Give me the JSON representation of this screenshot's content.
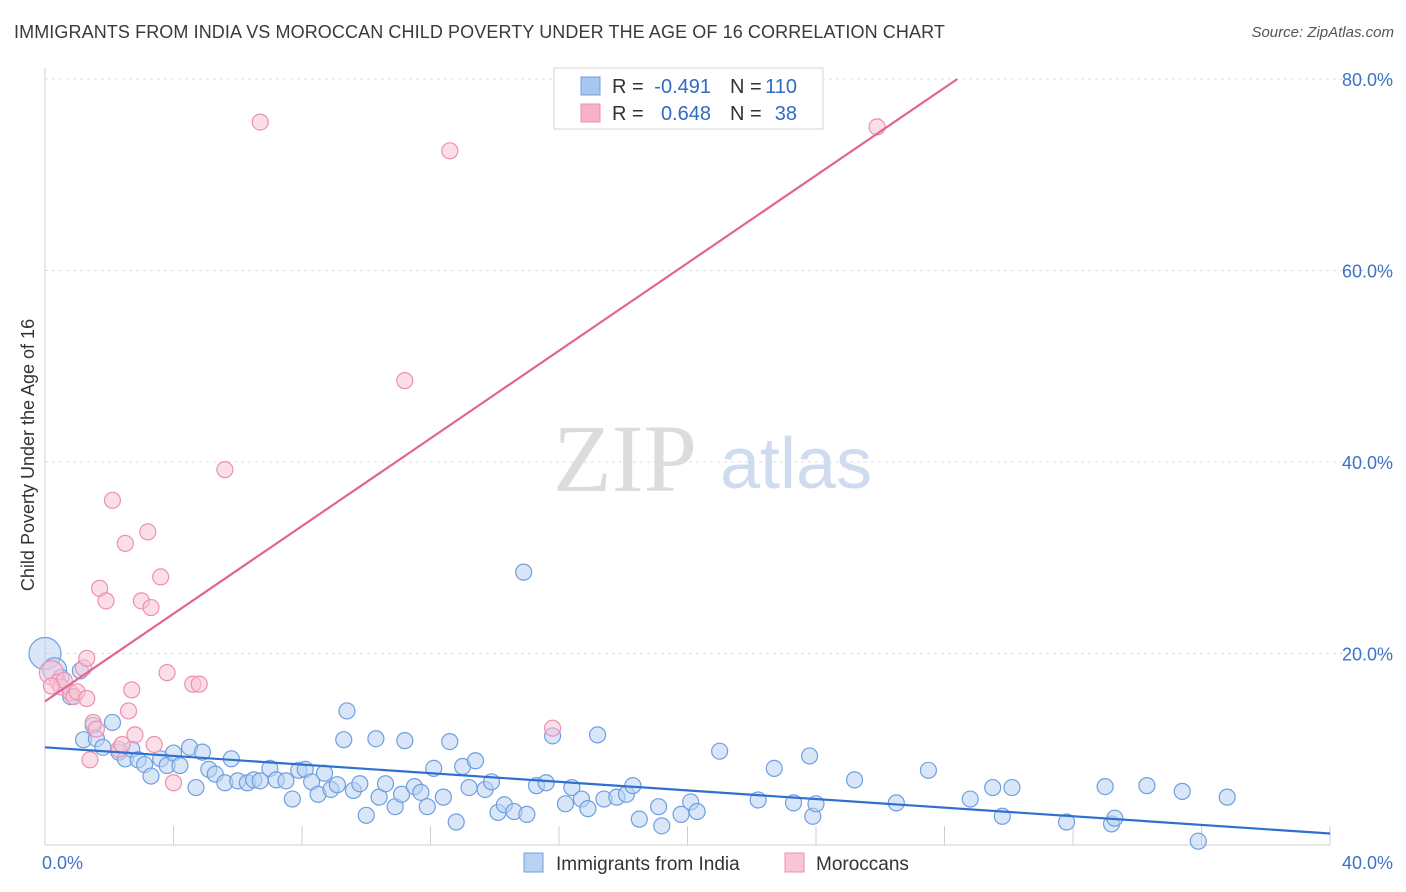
{
  "header": {
    "title": "IMMIGRANTS FROM INDIA VS MOROCCAN CHILD POVERTY UNDER THE AGE OF 16 CORRELATION CHART",
    "source": "Source: ZipAtlas.com"
  },
  "watermark": {
    "zip": "ZIP",
    "atlas": "atlas"
  },
  "stats_legend": {
    "rows": [
      {
        "r_label": "R =",
        "r_value": "-0.491",
        "n_label": "N =",
        "n_value": "110",
        "color": "#a9c6f0"
      },
      {
        "r_label": "R =",
        "r_value": "0.648",
        "n_label": "N =",
        "n_value": "38",
        "color": "#f6b3c8"
      }
    ]
  },
  "chart_data": {
    "type": "scatter",
    "title": "IMMIGRANTS FROM INDIA VS MOROCCAN CHILD POVERTY UNDER THE AGE OF 16 CORRELATION CHART",
    "xlabel": "",
    "ylabel": "Child Poverty Under the Age of 16",
    "xlim": [
      0,
      40
    ],
    "ylim": [
      0,
      80
    ],
    "x_tick_labels": [
      {
        "value": 0,
        "label": "0.0%"
      },
      {
        "value": 40,
        "label": "40.0%"
      }
    ],
    "y_tick_labels": [
      {
        "value": 20,
        "label": "20.0%"
      },
      {
        "value": 40,
        "label": "40.0%"
      },
      {
        "value": 60,
        "label": "60.0%"
      },
      {
        "value": 80,
        "label": "80.0%"
      }
    ],
    "grid": true,
    "legend_position": "bottom",
    "series": [
      {
        "name": "Immigrants from India",
        "color": "#6f9fe0",
        "fill": "#b9d2f3",
        "line_color": "#2f6fcf",
        "trend": [
          [
            0,
            10.2
          ],
          [
            40,
            1.2
          ]
        ],
        "points": [
          [
            0.0,
            20.0,
            2
          ],
          [
            0.3,
            18.3,
            1.5
          ],
          [
            0.5,
            17.5,
            1
          ],
          [
            0.8,
            15.5,
            1
          ],
          [
            1.1,
            18.2,
            1
          ],
          [
            1.2,
            11.0,
            1
          ],
          [
            1.5,
            12.5,
            1
          ],
          [
            1.6,
            11.1,
            1
          ],
          [
            1.8,
            10.2,
            1
          ],
          [
            2.1,
            12.8,
            1
          ],
          [
            2.3,
            9.7,
            1
          ],
          [
            2.5,
            9.0,
            1
          ],
          [
            2.7,
            10.0,
            1
          ],
          [
            2.9,
            8.9,
            1
          ],
          [
            3.1,
            8.4,
            1
          ],
          [
            3.3,
            7.2,
            1
          ],
          [
            3.6,
            9.0,
            1
          ],
          [
            3.8,
            8.3,
            1
          ],
          [
            4.0,
            9.6,
            1
          ],
          [
            4.2,
            8.3,
            1
          ],
          [
            4.5,
            10.2,
            1
          ],
          [
            4.7,
            6.0,
            1
          ],
          [
            4.9,
            9.7,
            1
          ],
          [
            5.1,
            7.9,
            1
          ],
          [
            5.3,
            7.4,
            1
          ],
          [
            5.6,
            6.5,
            1
          ],
          [
            5.8,
            9.0,
            1
          ],
          [
            6.0,
            6.7,
            1
          ],
          [
            6.3,
            6.5,
            1
          ],
          [
            6.5,
            6.8,
            1
          ],
          [
            6.7,
            6.7,
            1
          ],
          [
            7.0,
            8.0,
            1
          ],
          [
            7.2,
            6.8,
            1
          ],
          [
            7.5,
            6.7,
            1
          ],
          [
            7.7,
            4.8,
            1
          ],
          [
            7.9,
            7.8,
            1
          ],
          [
            8.1,
            7.9,
            1
          ],
          [
            8.3,
            6.6,
            1
          ],
          [
            8.5,
            5.3,
            1
          ],
          [
            8.7,
            7.5,
            1
          ],
          [
            8.9,
            5.8,
            1
          ],
          [
            9.1,
            6.3,
            1
          ],
          [
            9.3,
            11.0,
            1
          ],
          [
            9.4,
            14.0,
            1
          ],
          [
            9.6,
            5.7,
            1
          ],
          [
            9.8,
            6.4,
            1
          ],
          [
            10.0,
            3.1,
            1
          ],
          [
            10.3,
            11.1,
            1
          ],
          [
            10.4,
            5.0,
            1
          ],
          [
            10.6,
            6.4,
            1
          ],
          [
            10.9,
            4.0,
            1
          ],
          [
            11.1,
            5.3,
            1
          ],
          [
            11.2,
            10.9,
            1
          ],
          [
            11.5,
            6.1,
            1
          ],
          [
            11.7,
            5.5,
            1
          ],
          [
            11.9,
            4.0,
            1
          ],
          [
            12.1,
            8.0,
            1
          ],
          [
            12.4,
            5.0,
            1
          ],
          [
            12.6,
            10.8,
            1
          ],
          [
            12.8,
            2.4,
            1
          ],
          [
            13.0,
            8.2,
            1
          ],
          [
            13.2,
            6.0,
            1
          ],
          [
            13.4,
            8.8,
            1
          ],
          [
            13.7,
            5.8,
            1
          ],
          [
            13.9,
            6.6,
            1
          ],
          [
            14.1,
            3.4,
            1
          ],
          [
            14.3,
            4.2,
            1
          ],
          [
            14.6,
            3.5,
            1
          ],
          [
            14.9,
            28.5,
            1
          ],
          [
            15.0,
            3.2,
            1
          ],
          [
            15.3,
            6.2,
            1
          ],
          [
            15.6,
            6.5,
            1
          ],
          [
            15.8,
            11.4,
            1
          ],
          [
            16.2,
            4.3,
            1
          ],
          [
            16.4,
            6.0,
            1
          ],
          [
            16.7,
            4.8,
            1
          ],
          [
            16.9,
            3.8,
            1
          ],
          [
            17.2,
            11.5,
            1
          ],
          [
            17.4,
            4.8,
            1
          ],
          [
            17.8,
            5.0,
            1
          ],
          [
            18.1,
            5.3,
            1
          ],
          [
            18.3,
            6.2,
            1
          ],
          [
            18.5,
            2.7,
            1
          ],
          [
            19.1,
            4.0,
            1
          ],
          [
            19.2,
            2.0,
            1
          ],
          [
            19.8,
            3.2,
            1
          ],
          [
            20.1,
            4.5,
            1
          ],
          [
            20.3,
            3.5,
            1
          ],
          [
            21.0,
            9.8,
            1
          ],
          [
            22.2,
            4.7,
            1
          ],
          [
            22.7,
            8.0,
            1
          ],
          [
            23.3,
            4.4,
            1
          ],
          [
            23.8,
            9.3,
            1
          ],
          [
            23.9,
            3.0,
            1
          ],
          [
            24.0,
            4.3,
            1
          ],
          [
            25.2,
            6.8,
            1
          ],
          [
            26.5,
            4.4,
            1
          ],
          [
            27.5,
            7.8,
            1
          ],
          [
            28.8,
            4.8,
            1
          ],
          [
            29.5,
            6.0,
            1
          ],
          [
            29.8,
            3.0,
            1
          ],
          [
            30.1,
            6.0,
            1
          ],
          [
            31.8,
            2.4,
            1
          ],
          [
            33.0,
            6.1,
            1
          ],
          [
            33.2,
            2.2,
            1
          ],
          [
            33.3,
            2.8,
            1
          ],
          [
            34.3,
            6.2,
            1
          ],
          [
            35.4,
            5.6,
            1
          ],
          [
            35.9,
            0.4,
            1
          ],
          [
            36.8,
            5.0,
            1
          ]
        ]
      },
      {
        "name": "Moroccans",
        "color": "#ee8fb0",
        "fill": "#f8c4d6",
        "line_color": "#e0668f",
        "trend": [
          [
            0,
            15.0
          ],
          [
            28.4,
            80.0
          ]
        ],
        "points": [
          [
            0.2,
            18.0,
            1.5
          ],
          [
            0.4,
            17.0,
            1
          ],
          [
            0.5,
            16.5,
            1
          ],
          [
            0.6,
            17.2,
            1
          ],
          [
            0.8,
            15.9,
            1
          ],
          [
            0.9,
            15.5,
            1
          ],
          [
            1.0,
            16.0,
            1
          ],
          [
            1.2,
            18.5,
            1
          ],
          [
            1.3,
            15.3,
            1
          ],
          [
            1.3,
            19.5,
            1
          ],
          [
            1.4,
            8.9,
            1
          ],
          [
            1.5,
            12.8,
            1
          ],
          [
            1.6,
            12.1,
            1
          ],
          [
            1.7,
            26.8,
            1
          ],
          [
            1.9,
            25.5,
            1
          ],
          [
            2.1,
            36.0,
            1
          ],
          [
            2.3,
            10.0,
            1
          ],
          [
            2.4,
            10.5,
            1
          ],
          [
            2.5,
            31.5,
            1
          ],
          [
            2.6,
            14.0,
            1
          ],
          [
            2.7,
            16.2,
            1
          ],
          [
            2.8,
            11.5,
            1
          ],
          [
            3.0,
            25.5,
            1
          ],
          [
            3.2,
            32.7,
            1
          ],
          [
            3.3,
            24.8,
            1
          ],
          [
            3.4,
            10.5,
            1
          ],
          [
            3.6,
            28.0,
            1
          ],
          [
            3.8,
            18.0,
            1
          ],
          [
            4.0,
            6.5,
            1
          ],
          [
            4.6,
            16.8,
            1
          ],
          [
            4.8,
            16.8,
            1
          ],
          [
            5.6,
            39.2,
            1
          ],
          [
            6.7,
            75.5,
            1
          ],
          [
            11.2,
            48.5,
            1
          ],
          [
            12.6,
            72.5,
            1
          ],
          [
            15.8,
            12.2,
            1
          ],
          [
            25.9,
            75.0,
            1
          ],
          [
            0.2,
            16.6,
            1
          ]
        ]
      }
    ]
  }
}
